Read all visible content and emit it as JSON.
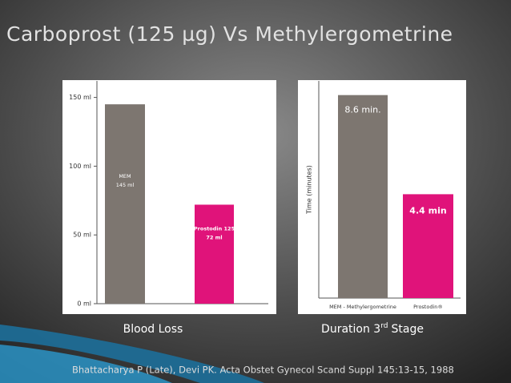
{
  "title": "Carboprost (125 µg) Vs Methylergometrine",
  "chart_data": [
    {
      "type": "bar",
      "categories": [
        "MEM",
        "Prostodin 125"
      ],
      "values": [
        145,
        72
      ],
      "value_labels": [
        "145 ml",
        "72 ml"
      ],
      "colors": [
        "#7d7670",
        "#e0137a"
      ],
      "ylim": [
        0,
        162
      ],
      "yticks": [
        {
          "value": 0,
          "label": "0 ml"
        },
        {
          "value": 50,
          "label": "50 ml"
        },
        {
          "value": 100,
          "label": "100 ml"
        },
        {
          "value": 150,
          "label": "150 ml"
        }
      ],
      "caption": "Blood Loss"
    },
    {
      "type": "bar",
      "categories": [
        "MEM - Methylergometrine",
        "Prostodin®"
      ],
      "values": [
        8.6,
        4.4
      ],
      "value_labels": [
        "8.6 min.",
        "4.4 min"
      ],
      "colors": [
        "#7d7670",
        "#e0137a"
      ],
      "ylim": [
        0,
        9.2
      ],
      "ylabel": "Time (minutes)",
      "caption": [
        "Duration 3",
        "rd",
        "Stage"
      ]
    }
  ],
  "citation": "Bhattacharya P (Late), Devi PK. Acta Obstet Gynecol Scand Suppl 145:13-15, 1988"
}
